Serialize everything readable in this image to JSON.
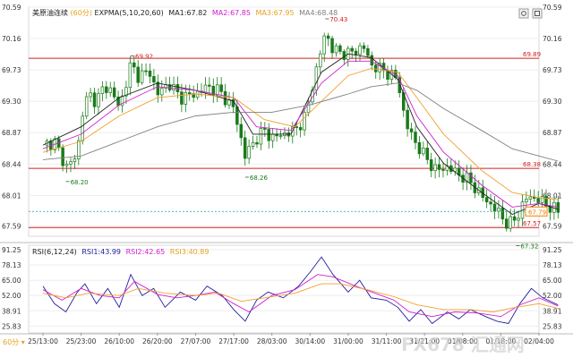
{
  "header": {
    "instrument": "美原油连续",
    "period": "(60分)",
    "indicator": "EXPMA(5,10,20,60)",
    "ma1": "MA1:67.82",
    "ma2": "MA2:67.85",
    "ma3": "MA3:67.95",
    "ma4": "MA4:68.48"
  },
  "rsi_header": {
    "indicator": "RSI(6,12,24)",
    "rsi1": "RSI1:43.99",
    "rsi2": "RSI2:42.65",
    "rsi3": "RSI3:40.89"
  },
  "period_selector": "60分",
  "toolbar": {
    "settings_icon": "gear-icon",
    "maximize_icon": "maximize-icon"
  },
  "watermark": "FX678 汇通网",
  "colors": {
    "up": "#1a7a1a",
    "down": "#1a7a1a",
    "ma1": "#222222",
    "ma2": "#d020d0",
    "ma3": "#f0a030",
    "ma4": "#808080",
    "level": "#d02020",
    "last": "#f08000",
    "rsi1": "#2020a0",
    "rsi2": "#d020d0",
    "rsi3": "#f0a030"
  },
  "chart_data": {
    "type": "candlestick",
    "x_ticks": [
      "25/13:00",
      "25/23:00",
      "26/10:00",
      "26/20:00",
      "27/07:00",
      "27/17:00",
      "28/03:00",
      "30/14:00",
      "31/00:00",
      "31/11:00",
      "31/21:00",
      "01/08:00",
      "01/18:00",
      "02/04:00"
    ],
    "y_ticks": [
      "70.59",
      "70.16",
      "69.73",
      "69.30",
      "68.87",
      "68.44",
      "68.01",
      "67.59"
    ],
    "ylim": [
      67.45,
      70.59
    ],
    "levels": [
      {
        "value": 69.89,
        "label": "69.89"
      },
      {
        "value": 68.38,
        "label": "68.38"
      },
      {
        "value": 67.57,
        "label": "67.57"
      }
    ],
    "last_price": {
      "value": 67.79,
      "label": "67.79"
    },
    "annotations": [
      {
        "label": "70.43",
        "value": 70.43,
        "x_tick_index": 7.4
      },
      {
        "label": "69.92",
        "value": 69.92,
        "x_tick_index": 2.3
      },
      {
        "label": "68.20",
        "value": 68.2,
        "x_tick_index": 0.6
      },
      {
        "label": "68.26",
        "value": 68.26,
        "x_tick_index": 5.3
      },
      {
        "label": "67.32",
        "value": 67.32,
        "x_tick_index": 12.4
      }
    ],
    "close_path": [
      [
        0,
        68.7
      ],
      [
        0.3,
        68.75
      ],
      [
        0.6,
        68.4
      ],
      [
        0.9,
        68.55
      ],
      [
        1.0,
        69.1
      ],
      [
        1.2,
        69.4
      ],
      [
        1.4,
        69.3
      ],
      [
        1.6,
        69.5
      ],
      [
        1.8,
        69.45
      ],
      [
        2.0,
        69.2
      ],
      [
        2.3,
        69.8
      ],
      [
        2.5,
        69.65
      ],
      [
        2.8,
        69.7
      ],
      [
        3.0,
        69.4
      ],
      [
        3.3,
        69.55
      ],
      [
        3.6,
        69.35
      ],
      [
        4.0,
        69.4
      ],
      [
        4.3,
        69.5
      ],
      [
        4.6,
        69.45
      ],
      [
        5.0,
        69.2
      ],
      [
        5.3,
        68.55
      ],
      [
        5.6,
        68.8
      ],
      [
        5.8,
        68.9
      ],
      [
        6.0,
        68.8
      ],
      [
        6.3,
        68.85
      ],
      [
        6.6,
        68.9
      ],
      [
        6.9,
        69.1
      ],
      [
        7.0,
        69.4
      ],
      [
        7.2,
        69.8
      ],
      [
        7.4,
        70.25
      ],
      [
        7.6,
        70.0
      ],
      [
        8.0,
        69.95
      ],
      [
        8.4,
        70.05
      ],
      [
        8.6,
        69.8
      ],
      [
        9.0,
        69.7
      ],
      [
        9.3,
        69.6
      ],
      [
        9.5,
        69.0
      ],
      [
        9.8,
        68.7
      ],
      [
        10.0,
        68.55
      ],
      [
        10.3,
        68.35
      ],
      [
        10.6,
        68.4
      ],
      [
        10.9,
        68.3
      ],
      [
        11.2,
        68.2
      ],
      [
        11.5,
        68.0
      ],
      [
        11.9,
        67.8
      ],
      [
        12.2,
        67.6
      ],
      [
        12.4,
        67.7
      ],
      [
        12.7,
        68.0
      ],
      [
        13.0,
        67.95
      ],
      [
        13.3,
        67.85
      ],
      [
        13.5,
        67.79
      ]
    ],
    "ma_series": [
      {
        "name": "MA1",
        "points": [
          [
            0,
            68.7
          ],
          [
            1.0,
            68.95
          ],
          [
            2.0,
            69.35
          ],
          [
            3.0,
            69.55
          ],
          [
            4.0,
            69.45
          ],
          [
            5.0,
            69.3
          ],
          [
            5.5,
            68.85
          ],
          [
            6.5,
            68.85
          ],
          [
            7.3,
            69.7
          ],
          [
            8.0,
            69.95
          ],
          [
            8.6,
            69.9
          ],
          [
            9.3,
            69.6
          ],
          [
            9.8,
            68.95
          ],
          [
            10.5,
            68.45
          ],
          [
            11.5,
            68.05
          ],
          [
            12.3,
            67.75
          ],
          [
            13.0,
            67.9
          ],
          [
            13.5,
            67.82
          ]
        ]
      },
      {
        "name": "MA2",
        "points": [
          [
            0,
            68.65
          ],
          [
            1.0,
            68.85
          ],
          [
            2.0,
            69.25
          ],
          [
            3.0,
            69.5
          ],
          [
            4.0,
            69.45
          ],
          [
            5.0,
            69.35
          ],
          [
            5.6,
            68.95
          ],
          [
            6.5,
            68.9
          ],
          [
            7.3,
            69.55
          ],
          [
            8.0,
            69.85
          ],
          [
            8.6,
            69.85
          ],
          [
            9.3,
            69.65
          ],
          [
            9.8,
            69.1
          ],
          [
            10.5,
            68.6
          ],
          [
            11.5,
            68.15
          ],
          [
            12.3,
            67.85
          ],
          [
            13.0,
            67.9
          ],
          [
            13.5,
            67.85
          ]
        ]
      },
      {
        "name": "MA3",
        "points": [
          [
            0,
            68.6
          ],
          [
            1.0,
            68.75
          ],
          [
            2.0,
            69.1
          ],
          [
            3.0,
            69.35
          ],
          [
            4.0,
            69.4
          ],
          [
            5.0,
            69.35
          ],
          [
            5.8,
            69.05
          ],
          [
            6.6,
            68.95
          ],
          [
            7.3,
            69.3
          ],
          [
            8.0,
            69.65
          ],
          [
            8.6,
            69.75
          ],
          [
            9.3,
            69.7
          ],
          [
            9.8,
            69.35
          ],
          [
            10.5,
            68.85
          ],
          [
            11.5,
            68.35
          ],
          [
            12.3,
            68.05
          ],
          [
            13.0,
            67.98
          ],
          [
            13.5,
            67.95
          ]
        ]
      },
      {
        "name": "MA4",
        "points": [
          [
            0,
            68.5
          ],
          [
            1.0,
            68.55
          ],
          [
            2.0,
            68.75
          ],
          [
            3.0,
            68.95
          ],
          [
            4.0,
            69.1
          ],
          [
            5.0,
            69.15
          ],
          [
            6.0,
            69.15
          ],
          [
            7.0,
            69.25
          ],
          [
            8.0,
            69.4
          ],
          [
            8.6,
            69.5
          ],
          [
            9.3,
            69.55
          ],
          [
            9.8,
            69.45
          ],
          [
            10.5,
            69.2
          ],
          [
            11.5,
            68.9
          ],
          [
            12.3,
            68.65
          ],
          [
            13.0,
            68.55
          ],
          [
            13.5,
            68.48
          ]
        ]
      }
    ],
    "rsi": {
      "y_ticks": [
        "91.25",
        "78.13",
        "65.00",
        "52.00",
        "38.91",
        "25.83"
      ],
      "ylim": [
        20,
        95
      ],
      "series": [
        {
          "name": "RSI1",
          "points": [
            [
              0,
              60
            ],
            [
              0.3,
              45
            ],
            [
              0.6,
              38
            ],
            [
              0.9,
              55
            ],
            [
              1.1,
              62
            ],
            [
              1.4,
              45
            ],
            [
              1.7,
              58
            ],
            [
              2.0,
              42
            ],
            [
              2.3,
              70
            ],
            [
              2.6,
              52
            ],
            [
              2.9,
              58
            ],
            [
              3.2,
              42
            ],
            [
              3.6,
              55
            ],
            [
              4.0,
              48
            ],
            [
              4.3,
              60
            ],
            [
              4.7,
              52
            ],
            [
              5.0,
              40
            ],
            [
              5.3,
              30
            ],
            [
              5.6,
              48
            ],
            [
              5.9,
              55
            ],
            [
              6.3,
              50
            ],
            [
              6.7,
              60
            ],
            [
              7.0,
              72
            ],
            [
              7.3,
              85
            ],
            [
              7.6,
              70
            ],
            [
              8.0,
              55
            ],
            [
              8.3,
              65
            ],
            [
              8.6,
              50
            ],
            [
              9.0,
              48
            ],
            [
              9.3,
              42
            ],
            [
              9.6,
              30
            ],
            [
              9.9,
              40
            ],
            [
              10.2,
              28
            ],
            [
              10.6,
              38
            ],
            [
              10.9,
              32
            ],
            [
              11.2,
              40
            ],
            [
              11.6,
              34
            ],
            [
              11.9,
              30
            ],
            [
              12.2,
              28
            ],
            [
              12.5,
              45
            ],
            [
              12.8,
              58
            ],
            [
              13.1,
              50
            ],
            [
              13.5,
              44
            ]
          ]
        },
        {
          "name": "RSI2",
          "points": [
            [
              0,
              57
            ],
            [
              0.5,
              48
            ],
            [
              1.0,
              58
            ],
            [
              1.5,
              52
            ],
            [
              2.0,
              50
            ],
            [
              2.4,
              64
            ],
            [
              3.0,
              53
            ],
            [
              3.5,
              50
            ],
            [
              4.0,
              52
            ],
            [
              4.5,
              55
            ],
            [
              5.0,
              45
            ],
            [
              5.4,
              38
            ],
            [
              6.0,
              52
            ],
            [
              6.6,
              57
            ],
            [
              7.2,
              70
            ],
            [
              7.6,
              68
            ],
            [
              8.2,
              60
            ],
            [
              8.7,
              54
            ],
            [
              9.2,
              48
            ],
            [
              9.6,
              38
            ],
            [
              10.2,
              34
            ],
            [
              10.8,
              38
            ],
            [
              11.4,
              37
            ],
            [
              12.0,
              34
            ],
            [
              12.5,
              44
            ],
            [
              13.0,
              50
            ],
            [
              13.5,
              43
            ]
          ]
        },
        {
          "name": "RSI3",
          "points": [
            [
              0,
              54
            ],
            [
              0.6,
              50
            ],
            [
              1.2,
              54
            ],
            [
              2.0,
              52
            ],
            [
              2.5,
              58
            ],
            [
              3.2,
              54
            ],
            [
              4.0,
              52
            ],
            [
              4.6,
              54
            ],
            [
              5.2,
              47
            ],
            [
              5.8,
              50
            ],
            [
              6.6,
              54
            ],
            [
              7.3,
              62
            ],
            [
              7.8,
              62
            ],
            [
              8.5,
              57
            ],
            [
              9.2,
              51
            ],
            [
              9.8,
              44
            ],
            [
              10.5,
              40
            ],
            [
              11.2,
              40
            ],
            [
              11.8,
              38
            ],
            [
              12.4,
              42
            ],
            [
              13.0,
              45
            ],
            [
              13.5,
              41
            ]
          ]
        }
      ]
    }
  }
}
